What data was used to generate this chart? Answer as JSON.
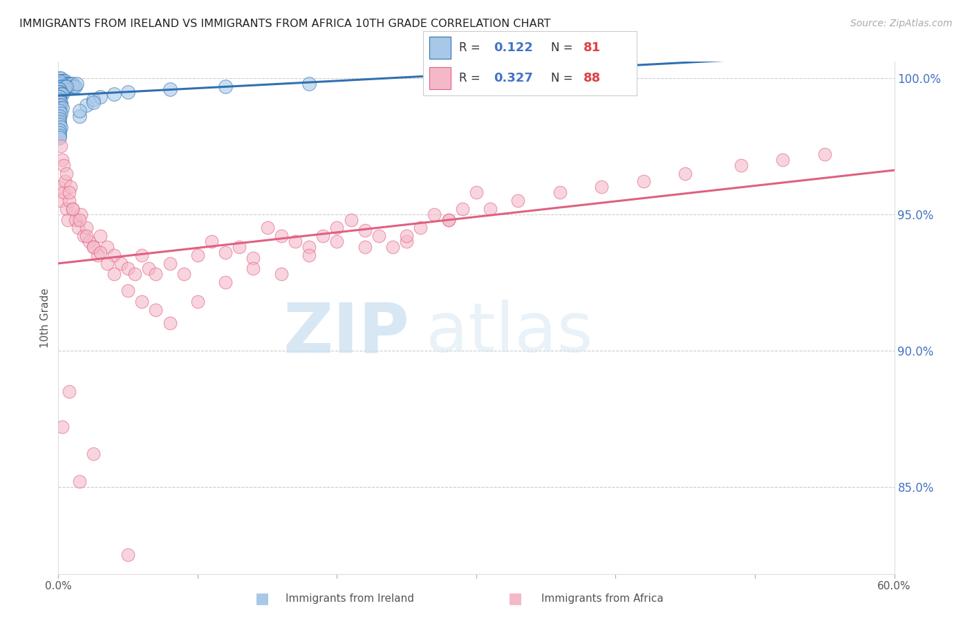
{
  "title": "IMMIGRANTS FROM IRELAND VS IMMIGRANTS FROM AFRICA 10TH GRADE CORRELATION CHART",
  "source": "Source: ZipAtlas.com",
  "ylabel": "10th Grade",
  "right_yticks": [
    85.0,
    90.0,
    95.0,
    100.0
  ],
  "xlim": [
    0.0,
    0.6
  ],
  "ylim": [
    0.818,
    1.006
  ],
  "xtick_positions": [
    0.0,
    0.1,
    0.2,
    0.3,
    0.4,
    0.5,
    0.6
  ],
  "xtick_labels": [
    "0.0%",
    "",
    "",
    "",
    "",
    "",
    "60.0%"
  ],
  "legend_ireland": "Immigrants from Ireland",
  "legend_africa": "Immigrants from Africa",
  "R_ireland": 0.122,
  "N_ireland": 81,
  "R_africa": 0.327,
  "N_africa": 88,
  "color_ireland": "#a8c8e8",
  "color_africa": "#f4b8c8",
  "color_ireland_line": "#3070b0",
  "color_africa_line": "#e06080",
  "watermark_zip": "ZIP",
  "watermark_atlas": "atlas",
  "ireland_x": [
    0.001,
    0.001,
    0.001,
    0.001,
    0.001,
    0.002,
    0.002,
    0.002,
    0.002,
    0.003,
    0.003,
    0.003,
    0.004,
    0.004,
    0.004,
    0.005,
    0.005,
    0.005,
    0.006,
    0.006,
    0.007,
    0.007,
    0.008,
    0.008,
    0.009,
    0.01,
    0.01,
    0.011,
    0.012,
    0.013,
    0.001,
    0.001,
    0.001,
    0.002,
    0.002,
    0.003,
    0.003,
    0.004,
    0.005,
    0.006,
    0.001,
    0.002,
    0.001,
    0.001,
    0.002,
    0.001,
    0.001,
    0.002,
    0.003,
    0.001,
    0.001,
    0.001,
    0.001,
    0.001,
    0.002,
    0.001,
    0.002,
    0.001,
    0.003,
    0.001,
    0.002,
    0.001,
    0.001,
    0.001,
    0.001,
    0.002,
    0.001,
    0.001,
    0.001,
    0.001,
    0.015,
    0.02,
    0.025,
    0.03,
    0.04,
    0.05,
    0.08,
    0.12,
    0.18,
    0.025,
    0.015
  ],
  "ireland_y": [
    0.999,
    0.998,
    0.997,
    1.0,
    0.999,
    0.998,
    0.999,
    0.997,
    1.0,
    0.998,
    0.997,
    0.999,
    0.998,
    0.997,
    0.999,
    0.998,
    0.997,
    0.999,
    0.998,
    0.997,
    0.998,
    0.997,
    0.998,
    0.997,
    0.998,
    0.997,
    0.998,
    0.997,
    0.997,
    0.998,
    0.997,
    0.998,
    0.999,
    0.996,
    0.997,
    0.996,
    0.997,
    0.996,
    0.997,
    0.997,
    0.996,
    0.995,
    0.996,
    0.995,
    0.994,
    0.994,
    0.995,
    0.994,
    0.994,
    0.993,
    0.993,
    0.992,
    0.991,
    0.99,
    0.991,
    0.99,
    0.99,
    0.989,
    0.989,
    0.988,
    0.987,
    0.986,
    0.985,
    0.984,
    0.983,
    0.982,
    0.981,
    0.98,
    0.979,
    0.978,
    0.986,
    0.99,
    0.992,
    0.993,
    0.994,
    0.995,
    0.996,
    0.997,
    0.998,
    0.991,
    0.988
  ],
  "africa_x": [
    0.001,
    0.002,
    0.003,
    0.004,
    0.005,
    0.006,
    0.007,
    0.008,
    0.009,
    0.01,
    0.012,
    0.014,
    0.016,
    0.018,
    0.02,
    0.022,
    0.025,
    0.028,
    0.03,
    0.035,
    0.04,
    0.045,
    0.05,
    0.055,
    0.06,
    0.065,
    0.07,
    0.08,
    0.09,
    0.1,
    0.11,
    0.12,
    0.13,
    0.14,
    0.15,
    0.16,
    0.17,
    0.18,
    0.19,
    0.2,
    0.21,
    0.22,
    0.23,
    0.24,
    0.25,
    0.26,
    0.27,
    0.28,
    0.29,
    0.3,
    0.002,
    0.004,
    0.006,
    0.008,
    0.01,
    0.015,
    0.02,
    0.025,
    0.03,
    0.035,
    0.04,
    0.05,
    0.06,
    0.07,
    0.08,
    0.1,
    0.12,
    0.14,
    0.16,
    0.18,
    0.2,
    0.22,
    0.25,
    0.28,
    0.31,
    0.33,
    0.36,
    0.39,
    0.42,
    0.45,
    0.49,
    0.52,
    0.55,
    0.003,
    0.008,
    0.015,
    0.025,
    0.05
  ],
  "africa_y": [
    0.96,
    0.955,
    0.97,
    0.958,
    0.962,
    0.952,
    0.948,
    0.955,
    0.96,
    0.952,
    0.948,
    0.945,
    0.95,
    0.942,
    0.945,
    0.94,
    0.938,
    0.935,
    0.942,
    0.938,
    0.935,
    0.932,
    0.93,
    0.928,
    0.935,
    0.93,
    0.928,
    0.932,
    0.928,
    0.935,
    0.94,
    0.936,
    0.938,
    0.934,
    0.945,
    0.942,
    0.94,
    0.938,
    0.942,
    0.945,
    0.948,
    0.944,
    0.942,
    0.938,
    0.94,
    0.945,
    0.95,
    0.948,
    0.952,
    0.958,
    0.975,
    0.968,
    0.965,
    0.958,
    0.952,
    0.948,
    0.942,
    0.938,
    0.936,
    0.932,
    0.928,
    0.922,
    0.918,
    0.915,
    0.91,
    0.918,
    0.925,
    0.93,
    0.928,
    0.935,
    0.94,
    0.938,
    0.942,
    0.948,
    0.952,
    0.955,
    0.958,
    0.96,
    0.962,
    0.965,
    0.968,
    0.97,
    0.972,
    0.872,
    0.885,
    0.852,
    0.862,
    0.825
  ],
  "ireland_trend": [
    0.0,
    0.6,
    0.97,
    1.0
  ],
  "africa_trend": [
    0.0,
    0.6,
    0.93,
    0.975
  ]
}
